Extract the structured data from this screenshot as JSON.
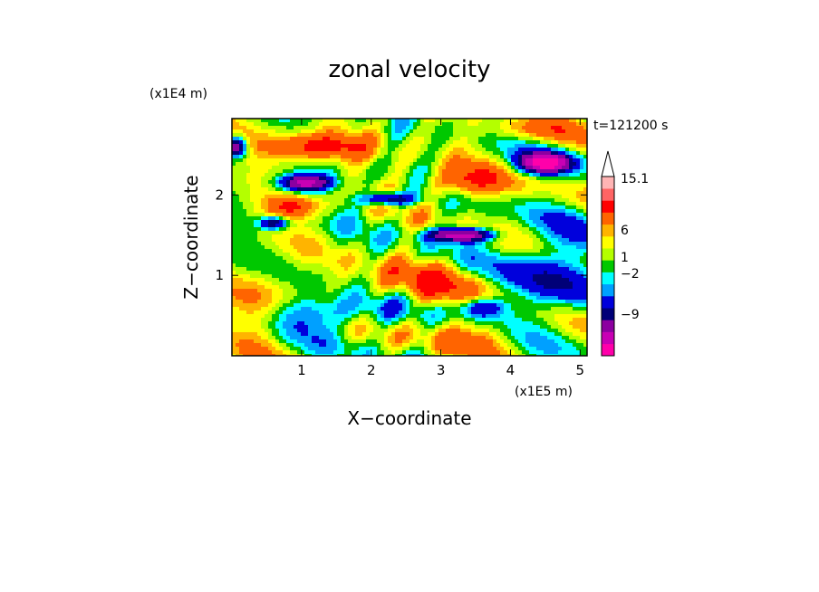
{
  "chart_data": {
    "type": "heatmap",
    "title": "zonal velocity",
    "xlabel": "X−coordinate",
    "ylabel": "Z−coordinate",
    "x_unit": "(x1E5 m)",
    "y_unit": "(x1E4 m)",
    "time_label": "t=121200 s",
    "xlim": [
      0,
      5.1
    ],
    "ylim": [
      0,
      2.95
    ],
    "x_ticks": [
      1,
      2,
      3,
      4,
      5
    ],
    "y_ticks": [
      1,
      2
    ],
    "colorbar": {
      "labeled_levels": [
        "15.1",
        "6",
        "1",
        "−2",
        "−9"
      ],
      "colors": [
        "#ff00aa",
        "#c800b4",
        "#8c00a0",
        "#000078",
        "#0000dc",
        "#00a0ff",
        "#00ffff",
        "#00c800",
        "#b4ff00",
        "#ffff00",
        "#ffb400",
        "#ff6400",
        "#ff0000",
        "#ff6464",
        "#ffb4b4"
      ]
    },
    "color_map_approx": {
      "levels": [
        -12,
        -9,
        -6,
        -4,
        -2,
        -1,
        0,
        1,
        2,
        3,
        4,
        6,
        9,
        12,
        15.1
      ],
      "note_hidden": false
    }
  }
}
